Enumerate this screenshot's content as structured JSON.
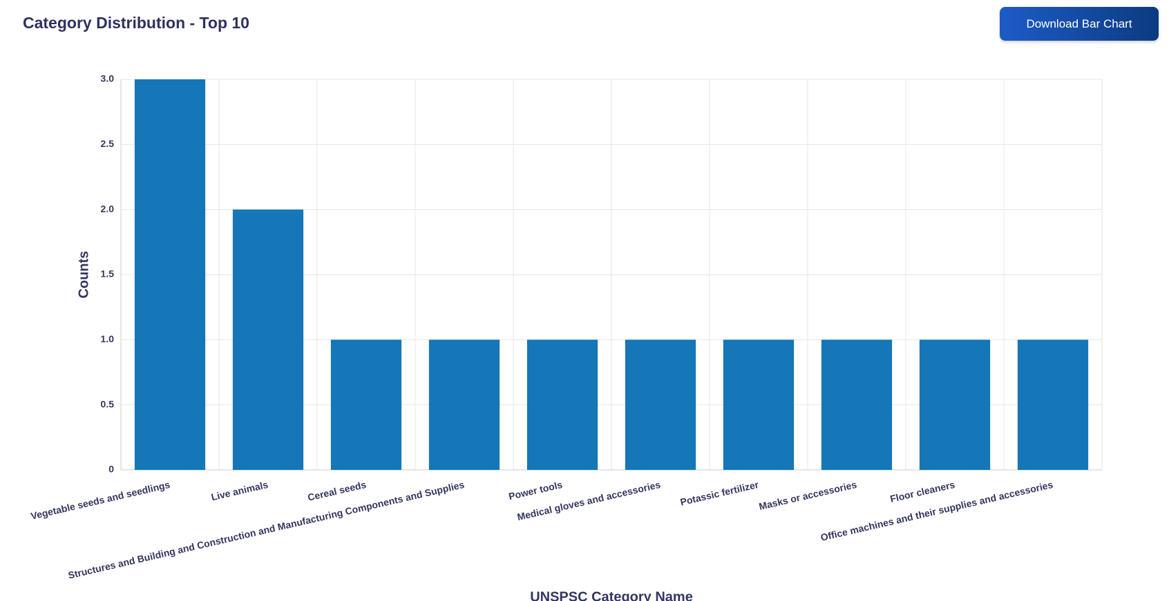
{
  "chart_data": {
    "type": "bar",
    "title": "Category Distribution - Top 10",
    "x_label": "UNSPSC Category Name",
    "y_label": "Counts",
    "categories": [
      "Vegetable seeds and seedlings",
      "Live animals",
      "Cereal seeds",
      "Structures and Building and Construction and Manufacturing Components and Supplies",
      "Power tools",
      "Medical gloves and accessories",
      "Potassic fertilizer",
      "Masks or accessories",
      "Floor cleaners",
      "Office machines and their supplies and accessories"
    ],
    "values": [
      3,
      2,
      1,
      1,
      1,
      1,
      1,
      1,
      1,
      1
    ],
    "color": "#1576b8",
    "ylim": [
      0,
      3
    ],
    "yticks": [
      0,
      0.5,
      {
        "value": 1,
        "label": "1.0"
      },
      1.5,
      {
        "value": 2,
        "label": "2.0"
      },
      2.5,
      {
        "value": 3,
        "label": "3.0"
      }
    ],
    "grid": true
  },
  "download_button": "Download Bar Chart"
}
